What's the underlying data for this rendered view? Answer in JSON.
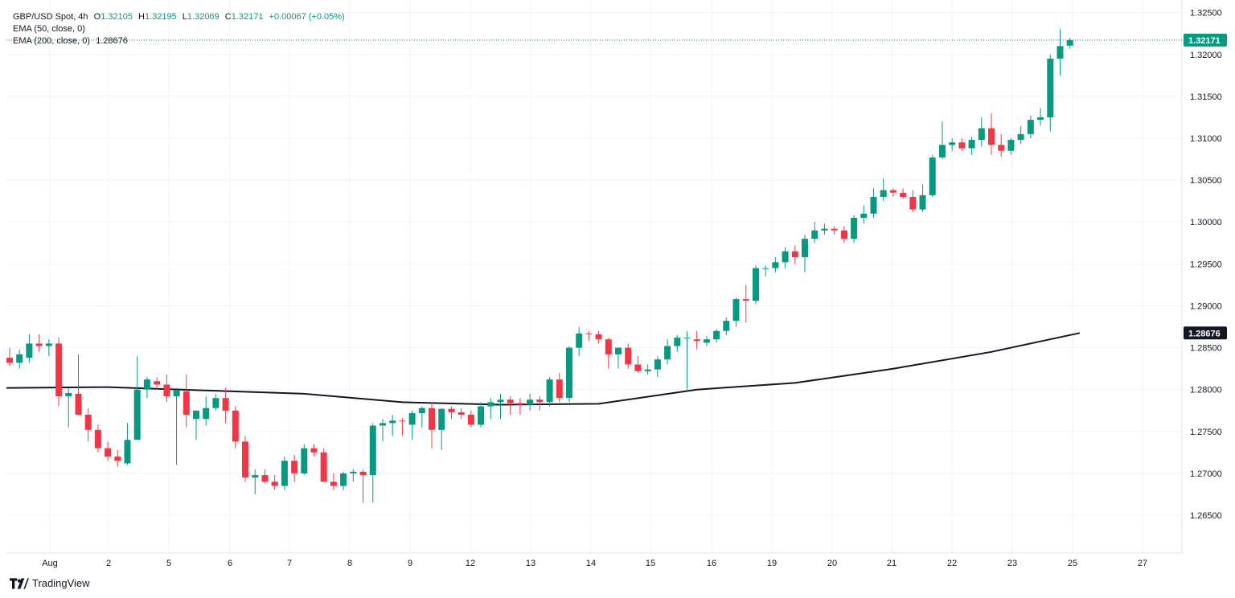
{
  "legend": {
    "symbol": "GBP/USD Spot, 4h",
    "ohlc": {
      "o_label": "O",
      "o": "1.32105",
      "h_label": "H",
      "h": "1.32195",
      "l_label": "L",
      "l": "1.32069",
      "c_label": "C",
      "c": "1.32171",
      "change": "+0.00067 (+0.05%)"
    },
    "ema50": {
      "label": "EMA (50, close, 0)"
    },
    "ema200": {
      "label": "EMA (200, close, 0)",
      "value": "1.28676"
    }
  },
  "brand": {
    "name": "TradingView",
    "icon": "tradingview-logo-icon"
  },
  "colors": {
    "up": "#089981",
    "down": "#f23645",
    "ema200": "#131722",
    "last_price_line": "#089981",
    "grid": "#f0f3fa"
  },
  "chart_data": {
    "type": "candlestick",
    "symbol": "GBP/USD Spot",
    "timeframe": "4h",
    "y_ticks": [
      "1.32500",
      "1.32000",
      "1.31500",
      "1.31000",
      "1.30500",
      "1.30000",
      "1.29500",
      "1.29000",
      "1.28500",
      "1.28000",
      "1.27500",
      "1.27000",
      "1.26500"
    ],
    "x_ticks": [
      "Aug",
      "2",
      "5",
      "6",
      "7",
      "8",
      "9",
      "12",
      "13",
      "14",
      "15",
      "16",
      "19",
      "20",
      "21",
      "22",
      "23",
      "25",
      "27"
    ],
    "last_price_label": "1.32171",
    "ema200_label": "1.28676",
    "ylim": [
      1.2605,
      1.3265
    ],
    "grid": true,
    "series": [
      {
        "name": "GBP/USD Spot",
        "ohlc": [
          [
            1.2838,
            1.285,
            1.2828,
            1.2832
          ],
          [
            1.2832,
            1.2848,
            1.2825,
            1.2842
          ],
          [
            1.2838,
            1.2866,
            1.2832,
            1.2855
          ],
          [
            1.2855,
            1.2866,
            1.2845,
            1.2852
          ],
          [
            1.2852,
            1.286,
            1.284,
            1.2855
          ],
          [
            1.2855,
            1.2862,
            1.278,
            1.2792
          ],
          [
            1.2792,
            1.2802,
            1.2755,
            1.2796
          ],
          [
            1.2795,
            1.2842,
            1.277,
            1.277
          ],
          [
            1.277,
            1.2778,
            1.2738,
            1.2752
          ],
          [
            1.2752,
            1.2758,
            1.2725,
            1.273
          ],
          [
            1.273,
            1.2738,
            1.2715,
            1.272
          ],
          [
            1.272,
            1.2728,
            1.2708,
            1.2715
          ],
          [
            1.2712,
            1.276,
            1.271,
            1.274
          ],
          [
            1.274,
            1.284,
            1.274,
            1.28
          ],
          [
            1.28,
            1.2815,
            1.279,
            1.2812
          ],
          [
            1.281,
            1.2815,
            1.28,
            1.2806
          ],
          [
            1.2806,
            1.2818,
            1.2785,
            1.2792
          ],
          [
            1.2792,
            1.2802,
            1.271,
            1.2799
          ],
          [
            1.2798,
            1.2818,
            1.2755,
            1.277
          ],
          [
            1.2765,
            1.2775,
            1.274,
            1.2775
          ],
          [
            1.2765,
            1.2792,
            1.2757,
            1.2778
          ],
          [
            1.2778,
            1.2795,
            1.2775,
            1.279
          ],
          [
            1.279,
            1.2802,
            1.276,
            1.2775
          ],
          [
            1.2775,
            1.278,
            1.273,
            1.2738
          ],
          [
            1.2738,
            1.2745,
            1.269,
            1.2695
          ],
          [
            1.2695,
            1.2705,
            1.2675,
            1.2698
          ],
          [
            1.2698,
            1.2705,
            1.2688,
            1.269
          ],
          [
            1.269,
            1.2698,
            1.268,
            1.2685
          ],
          [
            1.2685,
            1.272,
            1.268,
            1.2715
          ],
          [
            1.2715,
            1.2722,
            1.269,
            1.27
          ],
          [
            1.27,
            1.2735,
            1.2698,
            1.273
          ],
          [
            1.273,
            1.2735,
            1.272,
            1.2725
          ],
          [
            1.2725,
            1.273,
            1.2695,
            1.269
          ],
          [
            1.269,
            1.27,
            1.268,
            1.2685
          ],
          [
            1.2685,
            1.2702,
            1.268,
            1.27
          ],
          [
            1.27,
            1.2705,
            1.269,
            1.2702
          ],
          [
            1.2702,
            1.2705,
            1.2665,
            1.2698
          ],
          [
            1.2698,
            1.276,
            1.2665,
            1.2757
          ],
          [
            1.2757,
            1.2765,
            1.2738,
            1.276
          ],
          [
            1.276,
            1.277,
            1.2745,
            1.2763
          ],
          [
            1.2763,
            1.2766,
            1.2745,
            1.2762
          ],
          [
            1.2758,
            1.2775,
            1.274,
            1.2772
          ],
          [
            1.2772,
            1.278,
            1.2755,
            1.2778
          ],
          [
            1.2778,
            1.2785,
            1.273,
            1.2752
          ],
          [
            1.2752,
            1.2778,
            1.2728,
            1.2777
          ],
          [
            1.2777,
            1.278,
            1.2765,
            1.2773
          ],
          [
            1.2773,
            1.2778,
            1.2765,
            1.277
          ],
          [
            1.277,
            1.2775,
            1.2755,
            1.2758
          ],
          [
            1.2758,
            1.2785,
            1.2755,
            1.278
          ],
          [
            1.278,
            1.279,
            1.2765,
            1.2785
          ],
          [
            1.2785,
            1.2795,
            1.2765,
            1.2788
          ],
          [
            1.2788,
            1.2792,
            1.277,
            1.2784
          ],
          [
            1.2784,
            1.279,
            1.277,
            1.2782
          ],
          [
            1.2782,
            1.2795,
            1.2775,
            1.2788
          ],
          [
            1.2788,
            1.2792,
            1.2775,
            1.2785
          ],
          [
            1.2785,
            1.2815,
            1.278,
            1.2812
          ],
          [
            1.2812,
            1.282,
            1.2785,
            1.279
          ],
          [
            1.279,
            1.2852,
            1.2785,
            1.285
          ],
          [
            1.285,
            1.2875,
            1.284,
            1.2867
          ],
          [
            1.2867,
            1.287,
            1.2858,
            1.2866
          ],
          [
            1.2866,
            1.287,
            1.2855,
            1.286
          ],
          [
            1.286,
            1.2862,
            1.2825,
            1.2842
          ],
          [
            1.2842,
            1.285,
            1.2825,
            1.285
          ],
          [
            1.285,
            1.2855,
            1.2825,
            1.283
          ],
          [
            1.283,
            1.284,
            1.282,
            1.2822
          ],
          [
            1.2822,
            1.283,
            1.2818,
            1.2824
          ],
          [
            1.2824,
            1.284,
            1.2815,
            1.2836
          ],
          [
            1.2836,
            1.286,
            1.283,
            1.2852
          ],
          [
            1.2852,
            1.2865,
            1.2845,
            1.2862
          ],
          [
            1.2862,
            1.287,
            1.28,
            1.2862
          ],
          [
            1.286,
            1.287,
            1.2848,
            1.2858
          ],
          [
            1.2856,
            1.2864,
            1.2852,
            1.286
          ],
          [
            1.286,
            1.2872,
            1.2856,
            1.287
          ],
          [
            1.287,
            1.2886,
            1.2865,
            1.2882
          ],
          [
            1.2882,
            1.291,
            1.2875,
            1.2908
          ],
          [
            1.2908,
            1.2925,
            1.288,
            1.2906
          ],
          [
            1.2906,
            1.2948,
            1.2902,
            1.2945
          ],
          [
            1.2945,
            1.2948,
            1.2935,
            1.2945
          ],
          [
            1.2945,
            1.2958,
            1.294,
            1.2952
          ],
          [
            1.2952,
            1.297,
            1.2945,
            1.2965
          ],
          [
            1.2965,
            1.2972,
            1.295,
            1.2958
          ],
          [
            1.2958,
            1.2985,
            1.294,
            1.298
          ],
          [
            1.298,
            1.3,
            1.2975,
            1.299
          ],
          [
            1.299,
            1.2998,
            1.2985,
            1.2992
          ],
          [
            1.2992,
            1.2995,
            1.2985,
            1.299
          ],
          [
            1.299,
            1.2995,
            1.2975,
            1.298
          ],
          [
            1.298,
            1.3008,
            1.2975,
            1.3005
          ],
          [
            1.3005,
            1.302,
            1.2998,
            1.301
          ],
          [
            1.301,
            1.304,
            1.3005,
            1.303
          ],
          [
            1.303,
            1.3052,
            1.3025,
            1.3038
          ],
          [
            1.3038,
            1.304,
            1.303,
            1.3035
          ],
          [
            1.3035,
            1.304,
            1.3028,
            1.303
          ],
          [
            1.303,
            1.3038,
            1.3012,
            1.3015
          ],
          [
            1.3015,
            1.3045,
            1.3012,
            1.3032
          ],
          [
            1.3032,
            1.308,
            1.303,
            1.3077
          ],
          [
            1.3077,
            1.312,
            1.3075,
            1.3092
          ],
          [
            1.3092,
            1.31,
            1.3085,
            1.3095
          ],
          [
            1.3095,
            1.31,
            1.3085,
            1.3088
          ],
          [
            1.3088,
            1.3102,
            1.308,
            1.3098
          ],
          [
            1.3098,
            1.3125,
            1.309,
            1.3112
          ],
          [
            1.3112,
            1.313,
            1.308,
            1.3092
          ],
          [
            1.3092,
            1.3105,
            1.3078,
            1.3085
          ],
          [
            1.3085,
            1.31,
            1.308,
            1.3098
          ],
          [
            1.3098,
            1.3115,
            1.3093,
            1.3105
          ],
          [
            1.3105,
            1.3127,
            1.31,
            1.3122
          ],
          [
            1.3122,
            1.3136,
            1.3115,
            1.3125
          ],
          [
            1.3125,
            1.32,
            1.3108,
            1.3195
          ],
          [
            1.3195,
            1.323,
            1.3175,
            1.321
          ],
          [
            1.32105,
            1.32195,
            1.32069,
            1.32171
          ]
        ]
      },
      {
        "name": "EMA (200, close, 0)",
        "points": [
          [
            0,
            1.2802
          ],
          [
            10,
            1.2803
          ],
          [
            20,
            1.2799
          ],
          [
            30,
            1.2795
          ],
          [
            40,
            1.2785
          ],
          [
            50,
            1.2782
          ],
          [
            60,
            1.2783
          ],
          [
            70,
            1.28
          ],
          [
            80,
            1.2808
          ],
          [
            90,
            1.2825
          ],
          [
            100,
            1.2845
          ],
          [
            105,
            1.28576
          ],
          [
            109,
            1.28676
          ]
        ]
      }
    ]
  }
}
